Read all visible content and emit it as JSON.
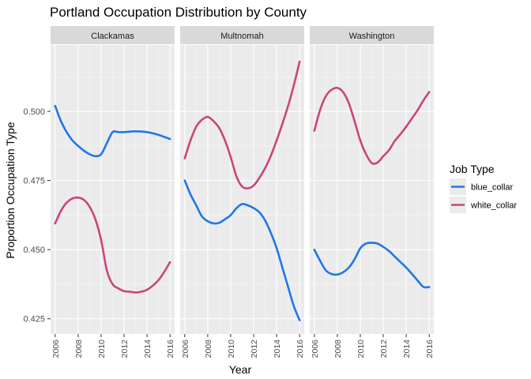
{
  "chart_data": {
    "type": "line",
    "title": "Portland Occupation Distribution by County",
    "xlabel": "Year",
    "ylabel": "Proportion Occupation Type",
    "xlim": [
      2005.6,
      2016.4
    ],
    "ylim": [
      0.4195,
      0.524
    ],
    "x_ticks": [
      2006,
      2008,
      2010,
      2012,
      2014,
      2016
    ],
    "y_ticks": [
      0.425,
      0.45,
      0.475,
      0.5
    ],
    "y_tick_labels": [
      "0.425",
      "0.450",
      "0.475",
      "0.500"
    ],
    "grid": true,
    "legend": {
      "title": "Job Type",
      "position": "right",
      "entries": [
        {
          "label": "blue_collar",
          "color": "#1f77e8"
        },
        {
          "label": "white_collar",
          "color": "#c9457e"
        }
      ]
    },
    "panels": [
      {
        "name": "Clackamas",
        "series": [
          {
            "name": "blue_collar",
            "color": "#1f77e8",
            "x": [
              2006,
              2006.5,
              2007,
              2007.5,
              2008,
              2008.5,
              2009,
              2009.5,
              2010,
              2010.5,
              2011,
              2011.5,
              2012,
              2013,
              2014,
              2015,
              2016
            ],
            "y": [
              0.502,
              0.4965,
              0.4925,
              0.4895,
              0.4875,
              0.4858,
              0.4845,
              0.4838,
              0.4845,
              0.4885,
              0.4925,
              0.4925,
              0.4925,
              0.4928,
              0.4925,
              0.4915,
              0.49
            ]
          },
          {
            "name": "white_collar",
            "color": "#c9457e",
            "x": [
              2006,
              2006.5,
              2007,
              2007.5,
              2008,
              2008.5,
              2009,
              2009.5,
              2010,
              2010.5,
              2011,
              2011.5,
              2012,
              2012.5,
              2013,
              2013.5,
              2014,
              2014.5,
              2015,
              2015.5,
              2016
            ],
            "y": [
              0.4595,
              0.464,
              0.467,
              0.4685,
              0.4688,
              0.468,
              0.4655,
              0.461,
              0.4535,
              0.4425,
              0.4375,
              0.436,
              0.435,
              0.4348,
              0.4345,
              0.4348,
              0.4355,
              0.437,
              0.439,
              0.442,
              0.4455
            ]
          }
        ]
      },
      {
        "name": "Multnomah",
        "series": [
          {
            "name": "blue_collar",
            "color": "#1f77e8",
            "x": [
              2006,
              2006.5,
              2007,
              2007.5,
              2008,
              2008.5,
              2009,
              2009.5,
              2010,
              2010.5,
              2011,
              2011.5,
              2012,
              2012.5,
              2013,
              2013.5,
              2014,
              2014.5,
              2015,
              2015.5,
              2016
            ],
            "y": [
              0.475,
              0.47,
              0.466,
              0.462,
              0.4603,
              0.4595,
              0.4597,
              0.461,
              0.4625,
              0.465,
              0.4665,
              0.466,
              0.465,
              0.4635,
              0.4605,
              0.456,
              0.4505,
              0.4435,
              0.4365,
              0.4295,
              0.4245
            ]
          },
          {
            "name": "white_collar",
            "color": "#c9457e",
            "x": [
              2006,
              2006.5,
              2007,
              2007.5,
              2008,
              2008.5,
              2009,
              2009.5,
              2010,
              2010.5,
              2011,
              2011.5,
              2012,
              2012.5,
              2013,
              2013.5,
              2014,
              2014.5,
              2015,
              2015.5,
              2016
            ],
            "y": [
              0.483,
              0.4895,
              0.4945,
              0.497,
              0.498,
              0.4965,
              0.494,
              0.4895,
              0.4835,
              0.4765,
              0.4728,
              0.4722,
              0.4732,
              0.476,
              0.4795,
              0.484,
              0.4895,
              0.4955,
              0.502,
              0.5095,
              0.518
            ]
          }
        ]
      },
      {
        "name": "Washington",
        "series": [
          {
            "name": "blue_collar",
            "color": "#1f77e8",
            "x": [
              2006,
              2006.5,
              2007,
              2007.5,
              2008,
              2008.5,
              2009,
              2009.5,
              2010,
              2010.5,
              2011,
              2011.5,
              2012,
              2012.5,
              2013,
              2013.5,
              2014,
              2014.5,
              2015,
              2015.5,
              2016
            ],
            "y": [
              0.45,
              0.446,
              0.4425,
              0.4412,
              0.441,
              0.4418,
              0.4435,
              0.4465,
              0.4505,
              0.4522,
              0.4525,
              0.4522,
              0.451,
              0.4495,
              0.4475,
              0.4455,
              0.4435,
              0.4412,
              0.4388,
              0.4365,
              0.4365
            ]
          },
          {
            "name": "white_collar",
            "color": "#c9457e",
            "x": [
              2006,
              2006.5,
              2007,
              2007.5,
              2008,
              2008.5,
              2009,
              2009.5,
              2010,
              2010.5,
              2011,
              2011.5,
              2012,
              2012.5,
              2013,
              2013.5,
              2014,
              2014.5,
              2015,
              2015.5,
              2016
            ],
            "y": [
              0.493,
              0.5005,
              0.5055,
              0.5078,
              0.5085,
              0.507,
              0.503,
              0.4965,
              0.4895,
              0.4845,
              0.4813,
              0.4815,
              0.4838,
              0.486,
              0.4893,
              0.4918,
              0.4945,
              0.4975,
              0.5005,
              0.504,
              0.507
            ]
          }
        ]
      }
    ]
  }
}
